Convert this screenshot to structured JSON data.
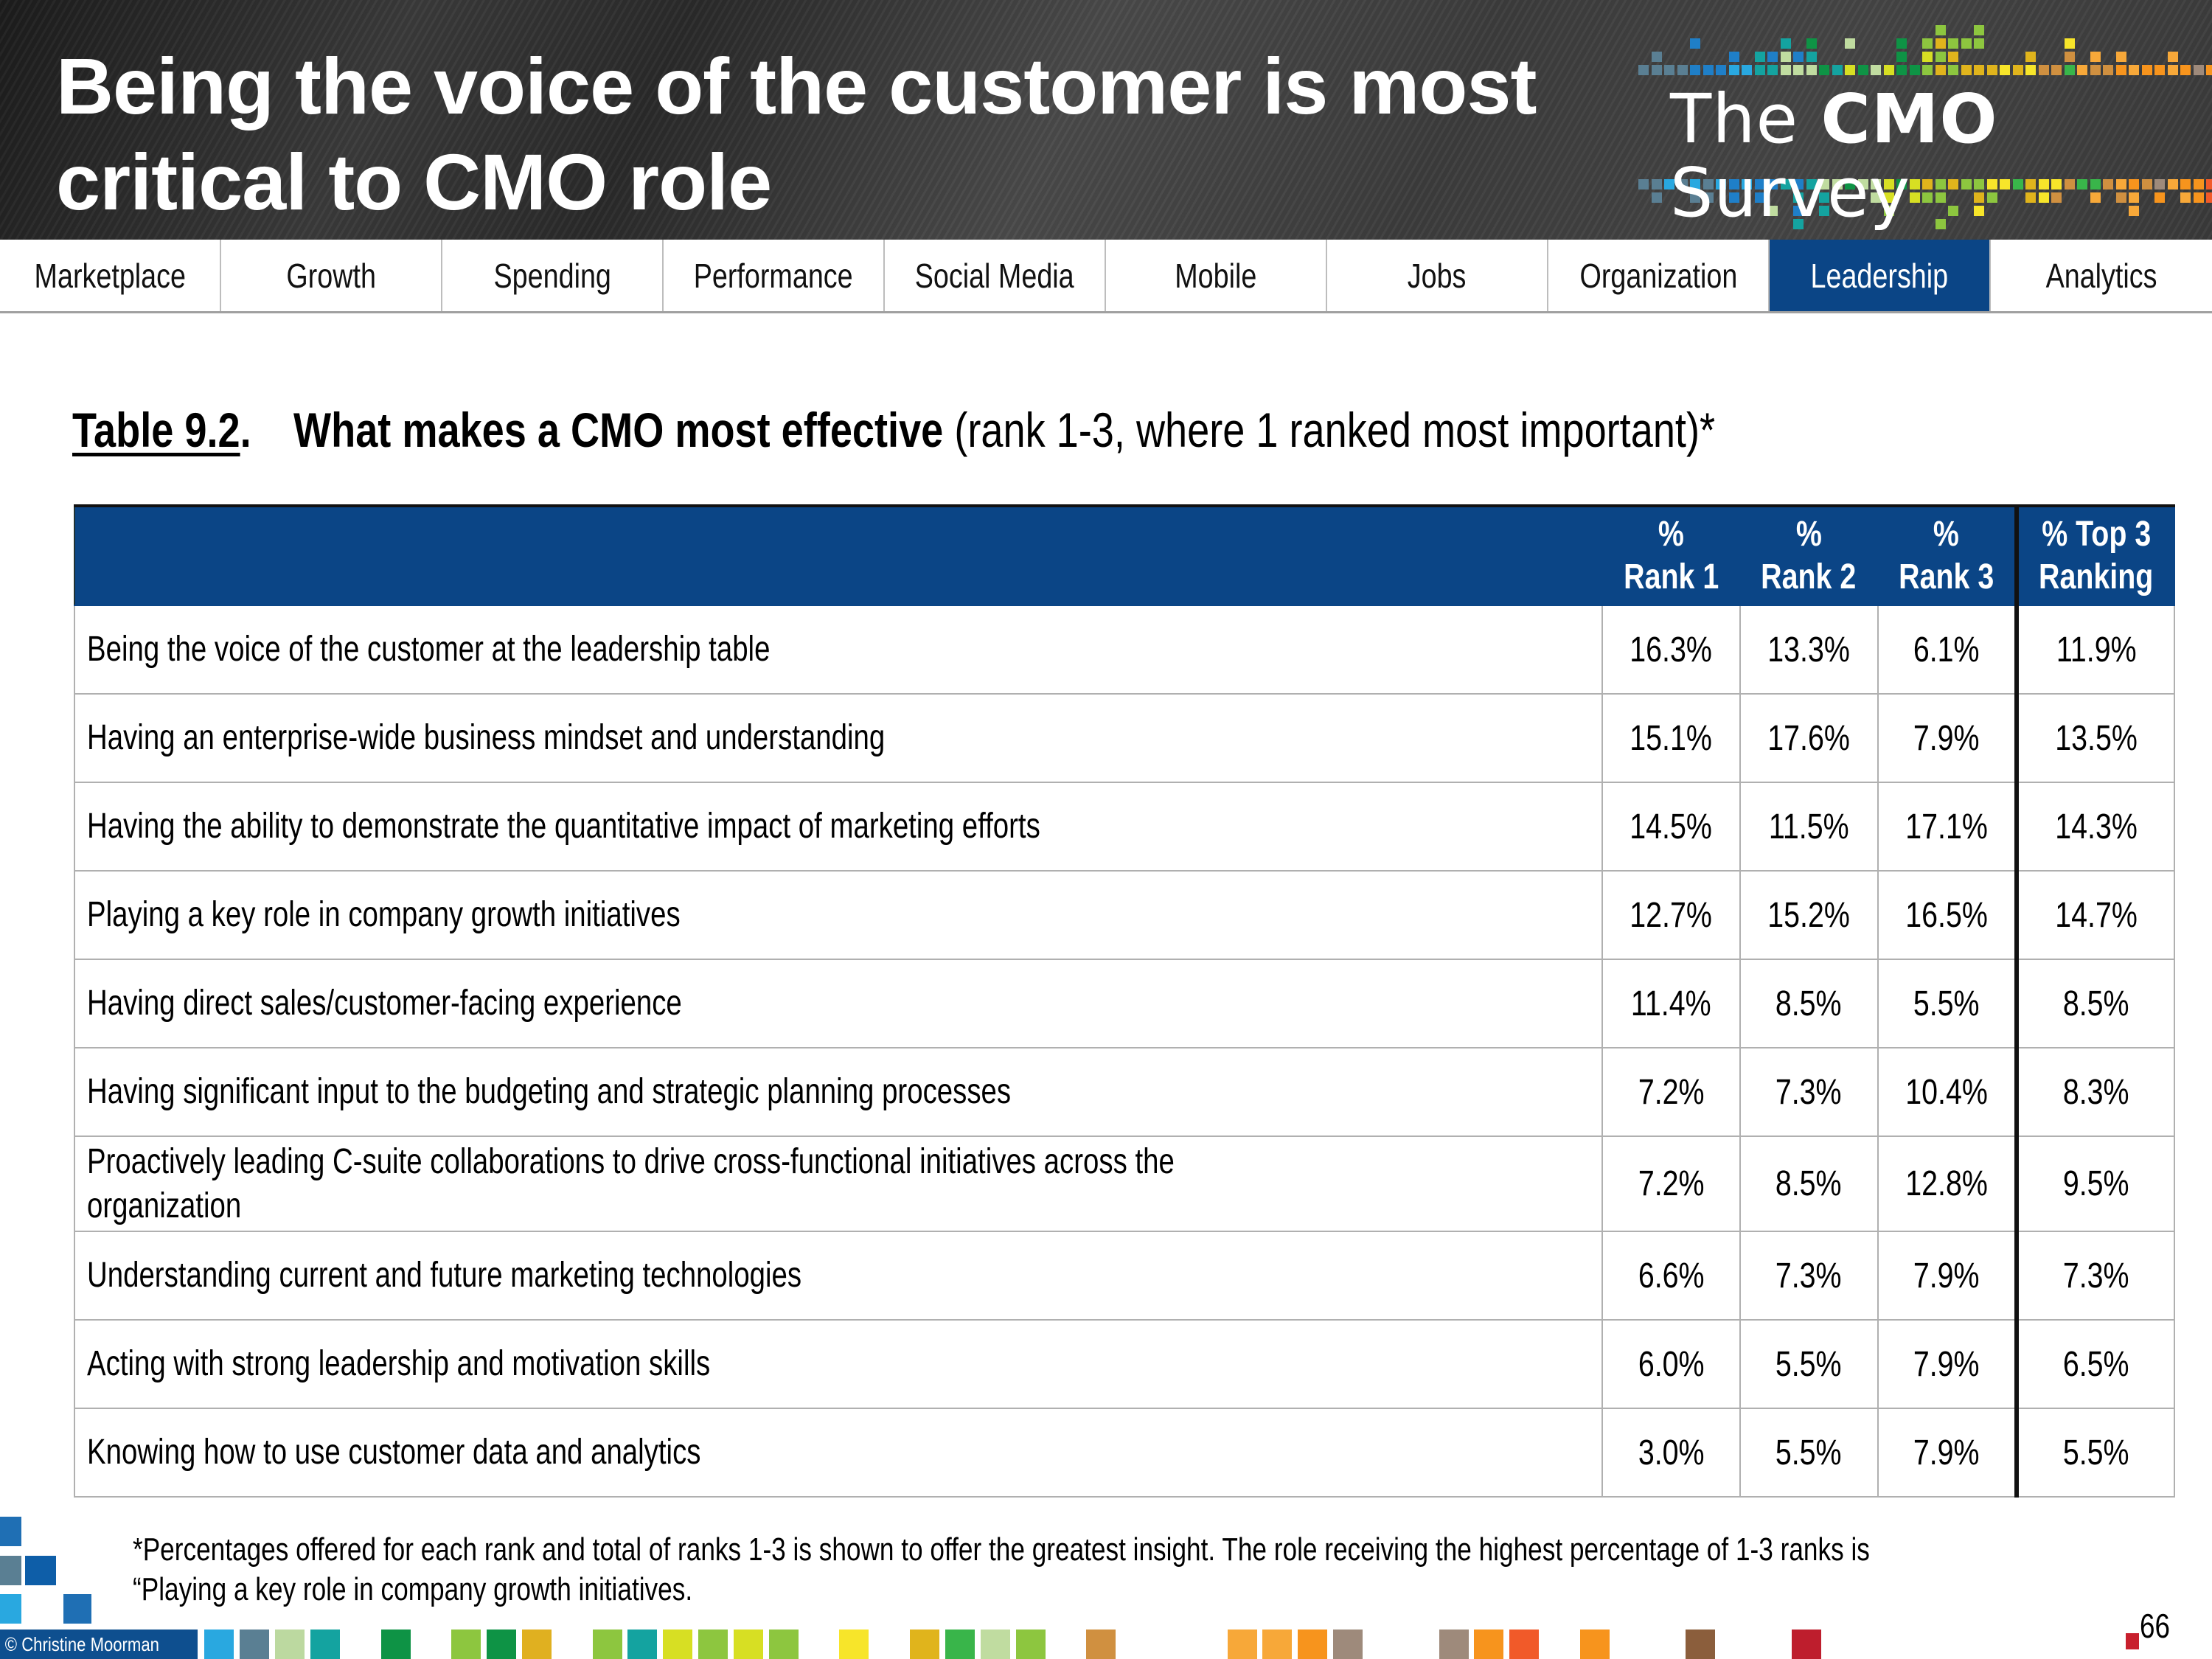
{
  "header": {
    "title_line1": "Being the voice of the customer is most",
    "title_line2": "critical to CMO role",
    "logo": {
      "text_pre": "The ",
      "text_bold": "CMO",
      "text_post": " Survey"
    }
  },
  "nav": {
    "active": "Leadership",
    "tabs": [
      "Marketplace",
      "Growth",
      "Spending",
      "Performance",
      "Social Media",
      "Mobile",
      "Jobs",
      "Organization",
      "Leadership",
      "Analytics"
    ]
  },
  "caption": {
    "number": "Table 9.2",
    "dot": ".",
    "bold": "What makes a CMO most effective",
    "rest": " (rank 1-3, where 1 ranked most important)*"
  },
  "table": {
    "columns": [
      {
        "line1": "%",
        "line2": "Rank 1"
      },
      {
        "line1": "%",
        "line2": "Rank 2"
      },
      {
        "line1": "%",
        "line2": "Rank 3"
      },
      {
        "line1": "% Top 3",
        "line2": "Ranking"
      }
    ],
    "rows": [
      {
        "label": "Being the voice of the customer at the leadership table",
        "values": [
          "16.3%",
          "13.3%",
          "6.1%",
          "11.9%"
        ]
      },
      {
        "label": "Having an enterprise-wide business mindset and understanding",
        "values": [
          "15.1%",
          "17.6%",
          "7.9%",
          "13.5%"
        ]
      },
      {
        "label": "Having the ability to demonstrate the quantitative impact of marketing efforts",
        "values": [
          "14.5%",
          "11.5%",
          "17.1%",
          "14.3%"
        ]
      },
      {
        "label": "Playing a key role in company growth initiatives",
        "values": [
          "12.7%",
          "15.2%",
          "16.5%",
          "14.7%"
        ]
      },
      {
        "label": "Having direct sales/customer-facing experience",
        "values": [
          "11.4%",
          "8.5%",
          "5.5%",
          "8.5%"
        ]
      },
      {
        "label": "Having significant input to the budgeting and strategic planning processes",
        "values": [
          "7.2%",
          "7.3%",
          "10.4%",
          "8.3%"
        ]
      },
      {
        "label": "Proactively leading C-suite collaborations to drive cross-functional initiatives across the organization",
        "values": [
          "7.2%",
          "8.5%",
          "12.8%",
          "9.5%"
        ]
      },
      {
        "label": "Understanding current and future marketing technologies",
        "values": [
          "6.6%",
          "7.3%",
          "7.9%",
          "7.3%"
        ]
      },
      {
        "label": "Acting with strong leadership and motivation skills",
        "values": [
          "6.0%",
          "5.5%",
          "7.9%",
          "6.5%"
        ]
      },
      {
        "label": "Knowing how to use customer data and analytics",
        "values": [
          "3.0%",
          "5.5%",
          "7.9%",
          "5.5%"
        ]
      }
    ]
  },
  "footnote": "*Percentages offered for each rank and total of ranks 1-3 is shown to offer the greatest insight. The role receiving the highest percentage of 1-3 ranks is “Playing a key role in company growth initiatives.",
  "footer": {
    "copyright": "© Christine Moorman",
    "page_number": "66"
  },
  "colors": {
    "accent": "#0b4586",
    "header_bg": "#3a3a3a"
  }
}
